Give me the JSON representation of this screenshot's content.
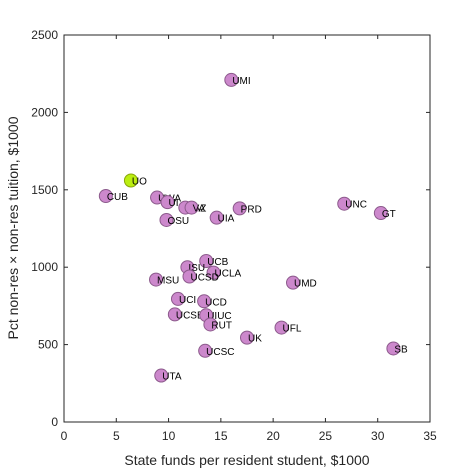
{
  "chart_data": {
    "type": "scatter",
    "title": "",
    "xlabel": "State funds per resident student, $1000",
    "ylabel": "Pct non-res × non-res tuition, $1000",
    "xlim": [
      0,
      35
    ],
    "ylim": [
      0,
      2500
    ],
    "xticks": [
      "0",
      "5",
      "10",
      "15",
      "20",
      "25",
      "30",
      "35"
    ],
    "yticks": [
      "0",
      "500",
      "1000",
      "1500",
      "2000",
      "2500"
    ],
    "grid": false,
    "marker_color": "#cc88cc",
    "marker_edge_color": "#8c5a8c",
    "highlight_color": "#bbee11",
    "points": [
      {
        "label": "UMI",
        "x": 16.0,
        "y": 2210
      },
      {
        "label": "UO",
        "x": 6.4,
        "y": 1560,
        "highlight": true
      },
      {
        "label": "CUB",
        "x": 4.0,
        "y": 1460
      },
      {
        "label": "UWA",
        "x": 8.9,
        "y": 1450
      },
      {
        "label": "UI",
        "x": 9.9,
        "y": 1420
      },
      {
        "label": "UAZ",
        "x": 11.6,
        "y": 1385
      },
      {
        "label": "VA",
        "x": 12.2,
        "y": 1385
      },
      {
        "label": "OSU",
        "x": 9.8,
        "y": 1305
      },
      {
        "label": "UIA",
        "x": 14.6,
        "y": 1320
      },
      {
        "label": "PRD",
        "x": 16.8,
        "y": 1380
      },
      {
        "label": "UNC",
        "x": 26.8,
        "y": 1410
      },
      {
        "label": "GT",
        "x": 30.3,
        "y": 1350
      },
      {
        "label": "UCB",
        "x": 13.6,
        "y": 1040
      },
      {
        "label": "ISU",
        "x": 11.8,
        "y": 1000
      },
      {
        "label": "UCLA",
        "x": 14.3,
        "y": 965
      },
      {
        "label": "UCSD",
        "x": 12.0,
        "y": 940
      },
      {
        "label": "MSU",
        "x": 8.8,
        "y": 920
      },
      {
        "label": "UMD",
        "x": 21.9,
        "y": 900
      },
      {
        "label": "UCI",
        "x": 10.9,
        "y": 795
      },
      {
        "label": "UCD",
        "x": 13.4,
        "y": 780
      },
      {
        "label": "UCSB",
        "x": 10.6,
        "y": 695
      },
      {
        "label": "UIUC",
        "x": 13.6,
        "y": 690
      },
      {
        "label": "RUT",
        "x": 14.0,
        "y": 630
      },
      {
        "label": "UFL",
        "x": 20.8,
        "y": 610
      },
      {
        "label": "UK",
        "x": 17.5,
        "y": 545
      },
      {
        "label": "UCSC",
        "x": 13.5,
        "y": 460
      },
      {
        "label": "SB",
        "x": 31.5,
        "y": 475
      },
      {
        "label": "UTA",
        "x": 9.3,
        "y": 300
      }
    ]
  }
}
